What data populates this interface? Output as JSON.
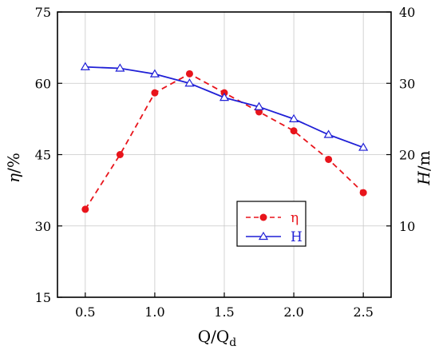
{
  "chart_data": {
    "type": "line",
    "x": [
      0.5,
      0.75,
      1.0,
      1.25,
      1.5,
      1.75,
      2.0,
      2.25,
      2.5
    ],
    "xlabel": {
      "main": "Q/Q",
      "sub": "d"
    },
    "xlim": [
      0.3,
      2.7
    ],
    "xticks": [
      "0.5",
      "1.0",
      "1.5",
      "2.0",
      "2.5"
    ],
    "left_axis": {
      "label": {
        "symbol": "η",
        "unit": "/%"
      },
      "ylim": [
        15,
        75
      ],
      "ticks": [
        "15",
        "30",
        "45",
        "60",
        "75"
      ]
    },
    "right_axis": {
      "label": {
        "symbol": "H",
        "unit": "/m"
      },
      "ylim": [
        0,
        40
      ],
      "ticks": [
        "10",
        "20",
        "30",
        "40"
      ]
    },
    "series": [
      {
        "name": "η",
        "axis": "left",
        "style": "dashed",
        "marker": "filled-circle",
        "color": "#e8141b",
        "values": [
          33.5,
          45.0,
          58.0,
          62.0,
          58.0,
          54.0,
          50.0,
          44.0,
          37.0
        ]
      },
      {
        "name": "H",
        "axis": "right",
        "style": "solid",
        "marker": "open-triangle",
        "color": "#1f1fd6",
        "values": [
          32.3,
          32.1,
          31.3,
          30.0,
          28.0,
          26.7,
          25.0,
          22.8,
          21.0
        ]
      }
    ],
    "grid": true,
    "legend_position": "lower-right"
  }
}
